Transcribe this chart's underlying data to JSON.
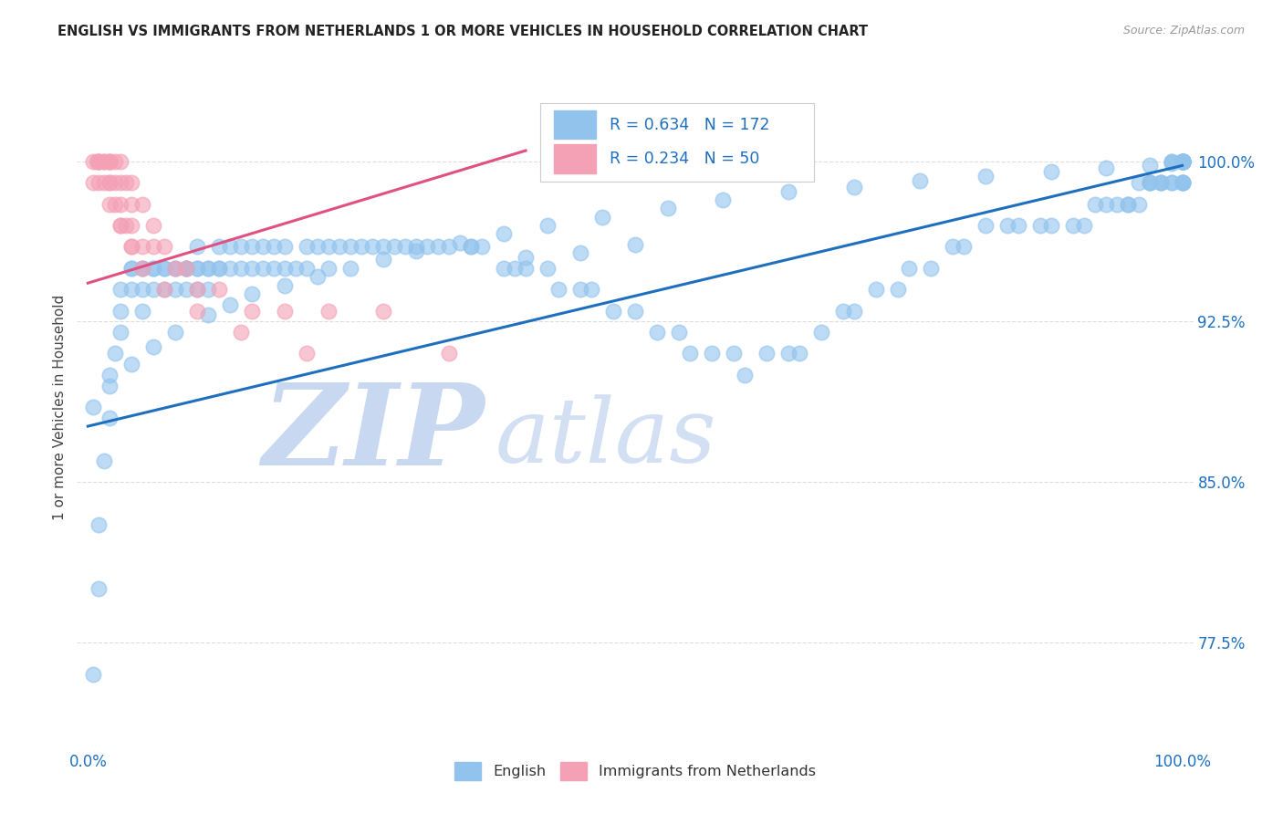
{
  "title": "ENGLISH VS IMMIGRANTS FROM NETHERLANDS 1 OR MORE VEHICLES IN HOUSEHOLD CORRELATION CHART",
  "source": "Source: ZipAtlas.com",
  "ylabel": "1 or more Vehicles in Household",
  "xlabel": "",
  "xlim": [
    -0.01,
    1.01
  ],
  "ylim": [
    0.725,
    1.045
  ],
  "yticks": [
    0.775,
    0.85,
    0.925,
    1.0
  ],
  "ytick_labels": [
    "77.5%",
    "85.0%",
    "92.5%",
    "100.0%"
  ],
  "xticks": [
    0.0,
    0.1,
    0.2,
    0.3,
    0.4,
    0.5,
    0.6,
    0.7,
    0.8,
    0.9,
    1.0
  ],
  "xtick_labels": [
    "0.0%",
    "",
    "",
    "",
    "",
    "",
    "",
    "",
    "",
    "",
    "100.0%"
  ],
  "legend_english_r": "R = 0.634",
  "legend_english_n": "N = 172",
  "legend_immigrants_r": "R = 0.234",
  "legend_immigrants_n": "N = 50",
  "english_color": "#91C3ED",
  "immigrants_color": "#F4A0B5",
  "trendline_english_color": "#1E6FBF",
  "trendline_immigrants_color": "#E05080",
  "watermark_zip": "ZIP",
  "watermark_atlas": "atlas",
  "watermark_color_zip": "#C8D8F0",
  "watermark_color_atlas": "#C8D8F0",
  "background_color": "#FFFFFF",
  "title_color": "#222222",
  "axis_label_color": "#444444",
  "tick_label_color": "#1E6FBF",
  "grid_color": "#DDDDDD",
  "trendline_english_start_x": 0.0,
  "trendline_english_start_y": 0.876,
  "trendline_english_end_x": 1.0,
  "trendline_english_end_y": 0.998,
  "trendline_immigrants_start_x": 0.0,
  "trendline_immigrants_start_y": 0.943,
  "trendline_immigrants_end_x": 0.4,
  "trendline_immigrants_end_y": 1.005,
  "english_x": [
    0.005,
    0.01,
    0.01,
    0.015,
    0.02,
    0.02,
    0.025,
    0.03,
    0.03,
    0.03,
    0.04,
    0.04,
    0.04,
    0.05,
    0.05,
    0.05,
    0.05,
    0.06,
    0.06,
    0.06,
    0.07,
    0.07,
    0.07,
    0.08,
    0.08,
    0.08,
    0.09,
    0.09,
    0.09,
    0.09,
    0.1,
    0.1,
    0.1,
    0.1,
    0.11,
    0.11,
    0.11,
    0.12,
    0.12,
    0.12,
    0.13,
    0.13,
    0.14,
    0.14,
    0.15,
    0.15,
    0.16,
    0.16,
    0.17,
    0.17,
    0.18,
    0.18,
    0.19,
    0.2,
    0.2,
    0.21,
    0.22,
    0.22,
    0.23,
    0.24,
    0.25,
    0.26,
    0.27,
    0.28,
    0.29,
    0.3,
    0.31,
    0.32,
    0.33,
    0.35,
    0.36,
    0.38,
    0.39,
    0.4,
    0.42,
    0.43,
    0.45,
    0.46,
    0.48,
    0.5,
    0.52,
    0.54,
    0.55,
    0.57,
    0.59,
    0.6,
    0.62,
    0.64,
    0.65,
    0.67,
    0.69,
    0.7,
    0.72,
    0.74,
    0.75,
    0.77,
    0.79,
    0.8,
    0.82,
    0.84,
    0.85,
    0.87,
    0.88,
    0.9,
    0.91,
    0.92,
    0.93,
    0.94,
    0.95,
    0.95,
    0.96,
    0.96,
    0.97,
    0.97,
    0.97,
    0.98,
    0.98,
    0.98,
    0.99,
    0.99,
    0.99,
    0.99,
    1.0,
    1.0,
    1.0,
    1.0,
    1.0,
    1.0,
    1.0,
    1.0,
    1.0,
    1.0,
    1.0,
    1.0,
    1.0,
    1.0,
    1.0,
    1.0,
    1.0,
    1.0,
    0.005,
    0.02,
    0.04,
    0.06,
    0.08,
    0.11,
    0.13,
    0.15,
    0.18,
    0.21,
    0.24,
    0.27,
    0.3,
    0.34,
    0.38,
    0.42,
    0.47,
    0.53,
    0.58,
    0.64,
    0.7,
    0.76,
    0.82,
    0.88,
    0.93,
    0.97,
    0.99,
    1.0,
    0.35,
    0.4,
    0.45,
    0.5
  ],
  "english_y": [
    0.76,
    0.8,
    0.83,
    0.86,
    0.88,
    0.9,
    0.91,
    0.92,
    0.93,
    0.94,
    0.94,
    0.95,
    0.95,
    0.95,
    0.95,
    0.94,
    0.93,
    0.95,
    0.95,
    0.94,
    0.95,
    0.95,
    0.94,
    0.95,
    0.95,
    0.94,
    0.95,
    0.95,
    0.95,
    0.94,
    0.95,
    0.95,
    0.96,
    0.94,
    0.95,
    0.95,
    0.94,
    0.95,
    0.96,
    0.95,
    0.95,
    0.96,
    0.95,
    0.96,
    0.95,
    0.96,
    0.95,
    0.96,
    0.95,
    0.96,
    0.95,
    0.96,
    0.95,
    0.96,
    0.95,
    0.96,
    0.95,
    0.96,
    0.96,
    0.96,
    0.96,
    0.96,
    0.96,
    0.96,
    0.96,
    0.96,
    0.96,
    0.96,
    0.96,
    0.96,
    0.96,
    0.95,
    0.95,
    0.95,
    0.95,
    0.94,
    0.94,
    0.94,
    0.93,
    0.93,
    0.92,
    0.92,
    0.91,
    0.91,
    0.91,
    0.9,
    0.91,
    0.91,
    0.91,
    0.92,
    0.93,
    0.93,
    0.94,
    0.94,
    0.95,
    0.95,
    0.96,
    0.96,
    0.97,
    0.97,
    0.97,
    0.97,
    0.97,
    0.97,
    0.97,
    0.98,
    0.98,
    0.98,
    0.98,
    0.98,
    0.98,
    0.99,
    0.99,
    0.99,
    0.99,
    0.99,
    0.99,
    0.99,
    0.99,
    0.99,
    1.0,
    1.0,
    0.99,
    0.99,
    0.99,
    0.99,
    1.0,
    1.0,
    1.0,
    1.0,
    1.0,
    1.0,
    1.0,
    1.0,
    1.0,
    1.0,
    1.0,
    1.0,
    1.0,
    1.0,
    0.885,
    0.895,
    0.905,
    0.913,
    0.92,
    0.928,
    0.933,
    0.938,
    0.942,
    0.946,
    0.95,
    0.954,
    0.958,
    0.962,
    0.966,
    0.97,
    0.974,
    0.978,
    0.982,
    0.986,
    0.988,
    0.991,
    0.993,
    0.995,
    0.997,
    0.998,
    0.999,
    1.0,
    0.96,
    0.955,
    0.957,
    0.961
  ],
  "immigrants_x": [
    0.005,
    0.008,
    0.01,
    0.01,
    0.01,
    0.015,
    0.015,
    0.02,
    0.02,
    0.02,
    0.02,
    0.02,
    0.025,
    0.025,
    0.03,
    0.03,
    0.03,
    0.03,
    0.035,
    0.035,
    0.04,
    0.04,
    0.04,
    0.04,
    0.05,
    0.05,
    0.06,
    0.06,
    0.07,
    0.08,
    0.09,
    0.1,
    0.12,
    0.15,
    0.18,
    0.22,
    0.27,
    0.33,
    0.005,
    0.01,
    0.015,
    0.02,
    0.025,
    0.03,
    0.04,
    0.05,
    0.07,
    0.1,
    0.14,
    0.2
  ],
  "immigrants_y": [
    1.0,
    1.0,
    1.0,
    1.0,
    1.0,
    1.0,
    1.0,
    1.0,
    1.0,
    1.0,
    0.99,
    0.99,
    1.0,
    0.99,
    1.0,
    0.99,
    0.98,
    0.97,
    0.99,
    0.97,
    0.99,
    0.98,
    0.97,
    0.96,
    0.98,
    0.96,
    0.97,
    0.96,
    0.96,
    0.95,
    0.95,
    0.94,
    0.94,
    0.93,
    0.93,
    0.93,
    0.93,
    0.91,
    0.99,
    0.99,
    0.99,
    0.98,
    0.98,
    0.97,
    0.96,
    0.95,
    0.94,
    0.93,
    0.92,
    0.91
  ]
}
